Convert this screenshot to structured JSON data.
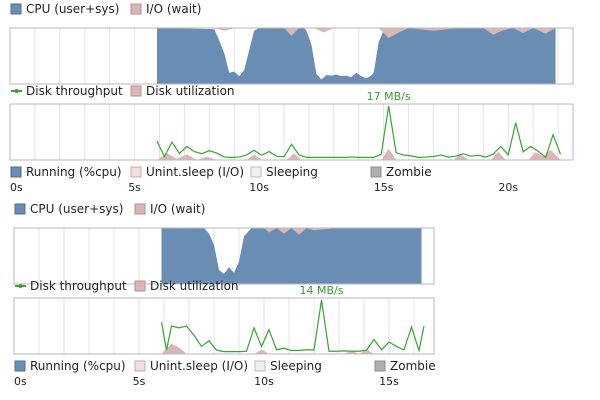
{
  "colors": {
    "cpu": "#6a8db4",
    "io_wait": "#dbb6b6",
    "disk_throughput": "#3aa433",
    "disk_utilization": "#dbb6b6",
    "running": "#6a8db4",
    "unint_sleep": "#f1dede",
    "sleeping": "#efefef",
    "zombie": "#b0b0b0"
  },
  "chart_data": [
    {
      "type": "area",
      "legend": {
        "cpu_top": [
          "CPU (user+sys)",
          "I/O (wait)"
        ],
        "disk": [
          "Disk throughput",
          "Disk utilization"
        ],
        "process": [
          "Running (%cpu)",
          "Unint.sleep (I/O)",
          "Sleeping",
          "Zombie"
        ]
      },
      "x_ticks": [
        {
          "label": "0s",
          "value": 0
        },
        {
          "label": "5s",
          "value": 5
        },
        {
          "label": "10s",
          "value": 10
        },
        {
          "label": "15s",
          "value": 15
        },
        {
          "label": "20s",
          "value": 20
        }
      ],
      "xlim": [
        0,
        22.6
      ],
      "cpu_x": [
        5.9,
        8.2,
        8.4,
        8.6,
        8.8,
        9.0,
        9.2,
        9.4,
        9.6,
        9.8,
        10.0,
        10.4,
        11.0,
        11.8,
        11.9,
        12.1,
        12.3,
        12.5,
        12.7,
        12.9,
        13.1,
        13.3,
        13.5,
        13.7,
        13.9,
        14.1,
        14.3,
        14.5,
        14.6,
        14.8,
        15.0,
        15.5,
        16.0,
        16.5,
        17.0,
        17.5,
        18.0,
        18.5,
        19.0,
        19.5,
        20.0,
        20.5,
        21.0,
        21.5,
        21.9
      ],
      "cpu_values": [
        100,
        98,
        78,
        55,
        20,
        22,
        14,
        25,
        60,
        95,
        100,
        100,
        100,
        100,
        95,
        70,
        18,
        8,
        16,
        15,
        17,
        14,
        15,
        12,
        20,
        14,
        10,
        15,
        20,
        75,
        96,
        100,
        100,
        100,
        100,
        100,
        100,
        100,
        100,
        100,
        100,
        100,
        100,
        100,
        100
      ],
      "io_x": [
        8.2,
        8.6,
        9.0,
        11.0,
        11.3,
        11.6,
        12.2,
        12.6,
        13.0,
        14.8,
        15.2,
        15.6,
        16.0,
        17.0,
        18.0,
        19.0,
        19.4,
        19.8,
        20.2,
        20.6,
        21.0,
        21.5,
        21.9
      ],
      "io_values": [
        0,
        5,
        0,
        0,
        14,
        0,
        0,
        8,
        0,
        0,
        18,
        8,
        0,
        5,
        0,
        0,
        12,
        4,
        0,
        9,
        0,
        10,
        0
      ],
      "throughput_x": [
        5.9,
        6.2,
        6.5,
        6.8,
        7.1,
        7.4,
        7.7,
        8.0,
        8.3,
        8.6,
        8.9,
        9.2,
        9.5,
        9.8,
        10.1,
        10.4,
        10.7,
        11.0,
        11.3,
        11.6,
        11.9,
        12.2,
        12.5,
        12.8,
        13.1,
        13.4,
        13.7,
        14.0,
        14.3,
        14.6,
        14.9,
        15.2,
        15.5,
        15.8,
        16.1,
        16.4,
        16.7,
        17.0,
        17.3,
        17.6,
        17.9,
        18.2,
        18.5,
        18.8,
        19.1,
        19.4,
        19.7,
        20.0,
        20.3,
        20.6,
        20.9,
        21.2,
        21.5,
        21.8,
        22.1
      ],
      "throughput_values": [
        5.5,
        0.5,
        5.2,
        1.5,
        3.8,
        2.1,
        1.4,
        2.4,
        1.6,
        0.3,
        0.2,
        0.3,
        1.0,
        2.5,
        0.9,
        2.1,
        0.6,
        0.4,
        4.5,
        1.0,
        0.2,
        0.2,
        0.2,
        0.2,
        0.2,
        0.2,
        0.3,
        0.2,
        0.2,
        0.2,
        1.2,
        17.0,
        1.7,
        1.0,
        0.7,
        0.2,
        0.3,
        0.5,
        1.0,
        0.3,
        0.6,
        1.4,
        0.6,
        0.9,
        0.3,
        1.3,
        3.8,
        1.0,
        11.5,
        2.0,
        3.8,
        2.2,
        0.2,
        7.6,
        1.2
      ],
      "utilization_x": [
        5.9,
        6.3,
        6.7,
        7.1,
        7.5,
        7.9,
        8.3,
        9.5,
        9.8,
        10.1,
        11.1,
        11.4,
        11.7,
        14.9,
        15.2,
        15.5,
        17.8,
        18.1,
        18.4,
        19.3,
        19.6,
        19.9,
        20.8,
        21.1,
        21.4,
        21.7,
        22.1
      ],
      "utilization_values": [
        0,
        12,
        2,
        10,
        0,
        6,
        0,
        0,
        10,
        0,
        0,
        12,
        0,
        0,
        20,
        0,
        0,
        10,
        0,
        0,
        15,
        0,
        0,
        14,
        6,
        18,
        0
      ],
      "peak_label": "17 MB/s"
    },
    {
      "type": "area",
      "legend": {
        "cpu_top": [
          "CPU (user+sys)",
          "I/O (wait)"
        ],
        "disk": [
          "Disk throughput",
          "Disk utilization"
        ],
        "process": [
          "Running (%cpu)",
          "Unint.sleep (I/O)",
          "Sleeping",
          "Zombie"
        ]
      },
      "x_ticks": [
        {
          "label": "0s",
          "value": 0
        },
        {
          "label": "5s",
          "value": 5
        },
        {
          "label": "10s",
          "value": 10
        },
        {
          "label": "15s",
          "value": 15
        }
      ],
      "xlim": [
        0,
        16.8
      ],
      "cpu_x": [
        5.9,
        7.6,
        7.8,
        8.0,
        8.2,
        8.4,
        8.6,
        8.8,
        9.0,
        9.2,
        9.5,
        10.0,
        11.0,
        12.0,
        13.0,
        14.0,
        15.0,
        16.3
      ],
      "cpu_values": [
        100,
        100,
        90,
        70,
        25,
        18,
        30,
        20,
        40,
        85,
        100,
        100,
        100,
        100,
        100,
        100,
        100,
        100
      ],
      "io_x": [
        10.0,
        10.2,
        10.5,
        10.8,
        11.1,
        11.4,
        11.7,
        12.0,
        13.0,
        14.0,
        15.0,
        16.3
      ],
      "io_values": [
        0,
        8,
        0,
        10,
        0,
        12,
        0,
        4,
        0,
        0,
        0,
        0
      ],
      "throughput_x": [
        5.9,
        6.1,
        6.3,
        6.6,
        6.9,
        7.2,
        7.5,
        7.8,
        8.1,
        8.4,
        8.7,
        9.0,
        9.3,
        9.6,
        9.9,
        10.2,
        10.5,
        10.8,
        11.1,
        11.4,
        11.7,
        12.0,
        12.3,
        12.6,
        12.9,
        13.2,
        13.5,
        13.8,
        14.1,
        14.4,
        14.7,
        15.0,
        15.3,
        15.6,
        15.9,
        16.2,
        16.4
      ],
      "throughput_values": [
        8.0,
        0.5,
        7.0,
        6.5,
        7.0,
        4.5,
        1.5,
        3.0,
        0.5,
        0.1,
        0.1,
        0.1,
        0.2,
        6.5,
        1.5,
        6.0,
        0.6,
        1.0,
        0.4,
        0.4,
        0.6,
        0.5,
        14.0,
        0.2,
        0.2,
        0.3,
        0.2,
        0.2,
        0.5,
        3.4,
        0.6,
        2.7,
        1.5,
        0.6,
        6.7,
        0.4,
        7.0
      ],
      "utilization_x": [
        5.9,
        6.3,
        6.6,
        6.9,
        7.2,
        9.6,
        9.9,
        10.2,
        10.5,
        13.2,
        13.5,
        13.8,
        14.1,
        14.4,
        14.7,
        15.0,
        16.4
      ],
      "utilization_values": [
        0,
        18,
        12,
        0,
        0,
        0,
        8,
        0,
        0,
        0,
        6,
        0,
        8,
        0,
        0,
        0,
        0
      ],
      "peak_label": "14 MB/s"
    }
  ]
}
